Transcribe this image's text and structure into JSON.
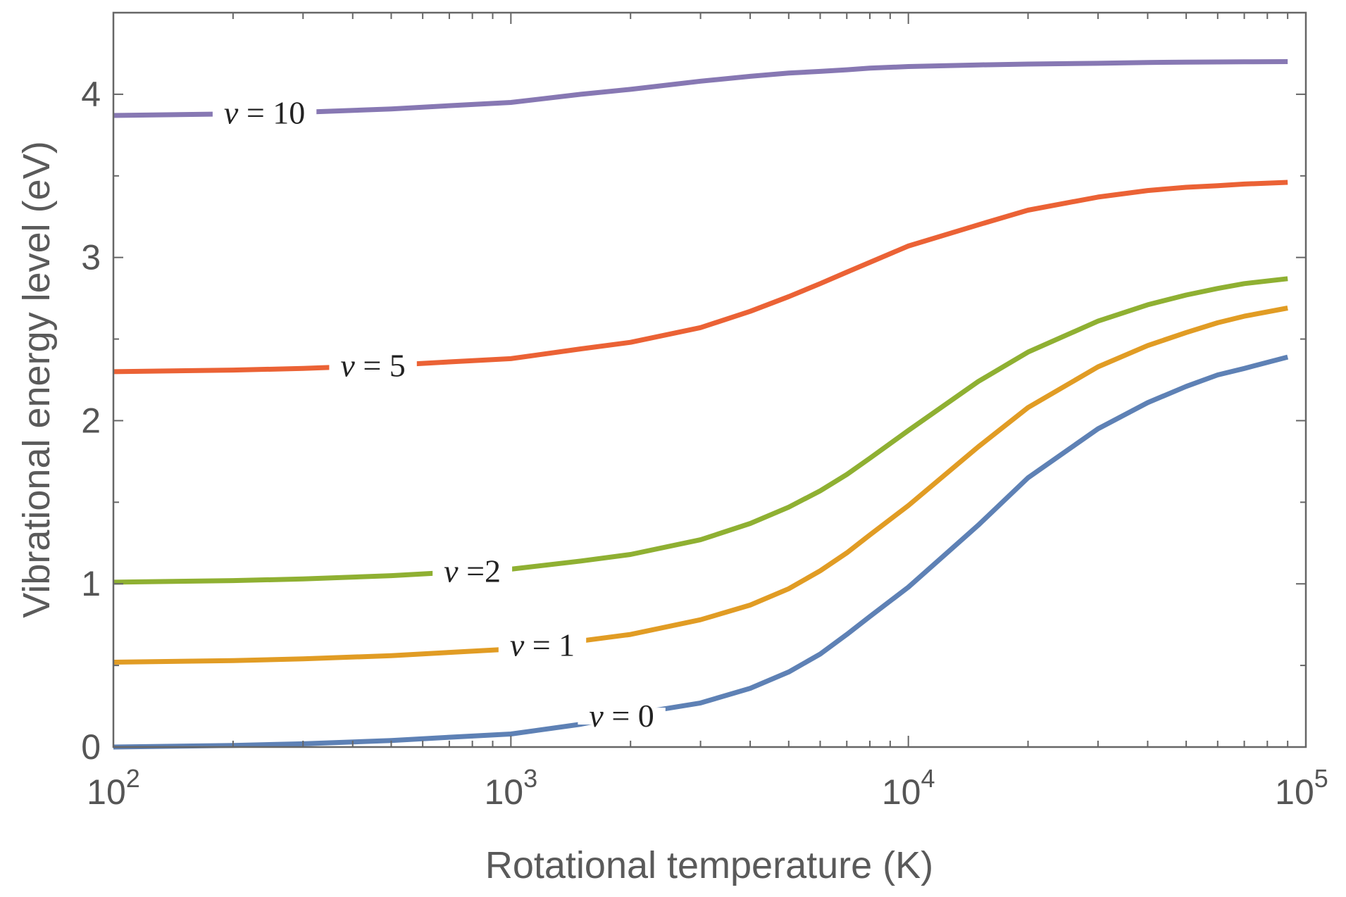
{
  "chart_data": {
    "type": "line",
    "title": "",
    "xlabel": "Rotational temperature (K)",
    "ylabel": "Vibrational energy level (eV)",
    "xscale": "log",
    "xlim": [
      100,
      100000
    ],
    "ylim": [
      0,
      4.5
    ],
    "x_ticks": [
      {
        "value": 100,
        "base": "10",
        "exp": "2"
      },
      {
        "value": 1000,
        "base": "10",
        "exp": "3"
      },
      {
        "value": 10000,
        "base": "10",
        "exp": "4"
      },
      {
        "value": 100000,
        "base": "10",
        "exp": "5"
      }
    ],
    "y_ticks": [
      {
        "value": 0,
        "label": "0"
      },
      {
        "value": 1,
        "label": "1"
      },
      {
        "value": 2,
        "label": "2"
      },
      {
        "value": 3,
        "label": "3"
      },
      {
        "value": 4,
        "label": "4"
      }
    ],
    "grid": false,
    "legend": "none",
    "series": [
      {
        "name": "v = 0",
        "label_var": "v",
        "label_rest": " = 0",
        "color": "#5e81b5",
        "label_x": 1900,
        "x": [
          100,
          200,
          300,
          500,
          700,
          1000,
          1500,
          2000,
          3000,
          4000,
          5000,
          6000,
          7000,
          8000,
          10000,
          15000,
          20000,
          30000,
          40000,
          50000,
          60000,
          70000,
          90000
        ],
        "y": [
          0.0,
          0.01,
          0.02,
          0.04,
          0.06,
          0.08,
          0.14,
          0.2,
          0.27,
          0.36,
          0.46,
          0.57,
          0.69,
          0.8,
          0.98,
          1.36,
          1.65,
          1.95,
          2.11,
          2.21,
          2.28,
          2.32,
          2.39
        ]
      },
      {
        "name": "v = 1",
        "label_var": "v",
        "label_rest": " = 1",
        "color": "#e19c24",
        "label_x": 1200,
        "x": [
          100,
          200,
          300,
          500,
          700,
          1000,
          1500,
          2000,
          3000,
          4000,
          5000,
          6000,
          7000,
          8000,
          10000,
          15000,
          20000,
          30000,
          40000,
          50000,
          60000,
          70000,
          90000
        ],
        "y": [
          0.52,
          0.53,
          0.54,
          0.56,
          0.58,
          0.6,
          0.65,
          0.69,
          0.78,
          0.87,
          0.97,
          1.08,
          1.19,
          1.3,
          1.48,
          1.84,
          2.08,
          2.33,
          2.46,
          2.54,
          2.6,
          2.64,
          2.69
        ]
      },
      {
        "name": "v =2",
        "label_var": "v",
        "label_rest": " =2",
        "color": "#8fb032",
        "label_x": 800,
        "x": [
          100,
          200,
          300,
          500,
          700,
          1000,
          1500,
          2000,
          3000,
          4000,
          5000,
          6000,
          7000,
          8000,
          10000,
          15000,
          20000,
          30000,
          40000,
          50000,
          60000,
          70000,
          90000
        ],
        "y": [
          1.01,
          1.02,
          1.03,
          1.05,
          1.07,
          1.09,
          1.14,
          1.18,
          1.27,
          1.37,
          1.47,
          1.57,
          1.67,
          1.77,
          1.94,
          2.24,
          2.42,
          2.61,
          2.71,
          2.77,
          2.81,
          2.84,
          2.87
        ]
      },
      {
        "name": "v = 5",
        "label_var": "v",
        "label_rest": " = 5",
        "color": "#eb6235",
        "label_x": 450,
        "x": [
          100,
          200,
          300,
          500,
          700,
          1000,
          1500,
          2000,
          3000,
          4000,
          5000,
          6000,
          7000,
          8000,
          10000,
          15000,
          20000,
          30000,
          40000,
          50000,
          60000,
          70000,
          90000
        ],
        "y": [
          2.3,
          2.31,
          2.32,
          2.34,
          2.36,
          2.38,
          2.44,
          2.48,
          2.57,
          2.67,
          2.76,
          2.84,
          2.91,
          2.97,
          3.07,
          3.2,
          3.29,
          3.37,
          3.41,
          3.43,
          3.44,
          3.45,
          3.46
        ]
      },
      {
        "name": "v = 10",
        "label_var": "v",
        "label_rest": " = 10",
        "color": "#8778b3",
        "label_x": 240,
        "x": [
          100,
          200,
          300,
          500,
          700,
          1000,
          1500,
          2000,
          3000,
          4000,
          5000,
          6000,
          7000,
          8000,
          10000,
          15000,
          20000,
          30000,
          40000,
          50000,
          60000,
          70000,
          90000
        ],
        "y": [
          3.87,
          3.88,
          3.89,
          3.91,
          3.93,
          3.95,
          4.0,
          4.03,
          4.08,
          4.11,
          4.13,
          4.14,
          4.15,
          4.16,
          4.17,
          4.18,
          4.185,
          4.19,
          4.195,
          4.197,
          4.198,
          4.199,
          4.2
        ]
      }
    ]
  }
}
